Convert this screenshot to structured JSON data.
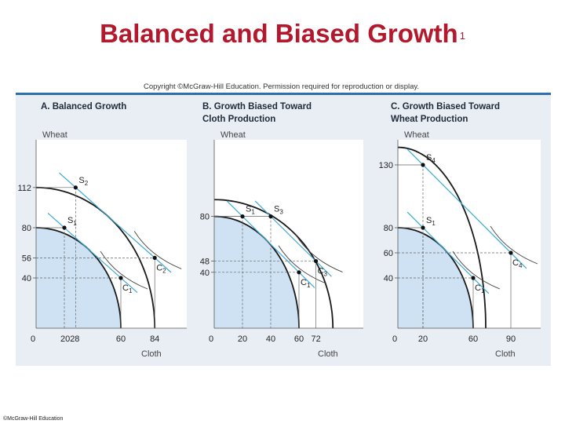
{
  "slide": {
    "title": "Balanced and Biased Growth",
    "title_suffix": "1",
    "footer": "©McGraw-Hill Education"
  },
  "copyright": "Copyright ©McGraw-Hill Education. Permission required for reproduction or display.",
  "colors": {
    "title": "#b3182c",
    "ppf_fill": "#cfe2f3",
    "ppf_curve": "#1a1a1a",
    "price_line": "#3aa8d8",
    "panel_bg": "#e9eef5",
    "panel_border": "#2f6fae"
  },
  "chart_data": [
    {
      "type": "line",
      "title_lines": [
        "A.  Balanced Growth"
      ],
      "ylabel": "Wheat",
      "xlabel": "Cloth",
      "xlim": [
        0,
        95
      ],
      "ylim": [
        0,
        130
      ],
      "x_ticks": [
        "0",
        "2028",
        "60",
        "84"
      ],
      "y_ticks": [
        "112",
        "80",
        "56",
        "40"
      ],
      "series": [
        {
          "ppf_x_intercept": 60,
          "ppf_y_intercept": 80
        },
        {
          "ppf_x_intercept": 84,
          "ppf_y_intercept": 112
        }
      ],
      "points": [
        {
          "label": "S",
          "sub": "1",
          "x": 20,
          "y": 80
        },
        {
          "label": "S",
          "sub": "2",
          "x": 28,
          "y": 112
        },
        {
          "label": "C",
          "sub": "1",
          "x": 60,
          "y": 40
        },
        {
          "label": "C",
          "sub": "2",
          "x": 84,
          "y": 56
        }
      ]
    },
    {
      "type": "line",
      "title_lines": [
        "B.  Growth Biased Toward",
        "Cloth Production"
      ],
      "ylabel": "Wheat",
      "xlabel": "Cloth",
      "xlim": [
        0,
        90
      ],
      "ylim": [
        0,
        110
      ],
      "x_ticks": [
        "0",
        "20",
        "40",
        "60",
        "72"
      ],
      "y_ticks": [
        "80",
        "48",
        "40"
      ],
      "series": [
        {
          "ppf_x_intercept": 60,
          "ppf_y_intercept": 80
        },
        {
          "ppf_x_intercept": 84,
          "ppf_y_intercept": 92
        }
      ],
      "points": [
        {
          "label": "S",
          "sub": "1",
          "x": 20,
          "y": 80
        },
        {
          "label": "S",
          "sub": "3",
          "x": 40,
          "y": 80
        },
        {
          "label": "C",
          "sub": "1",
          "x": 60,
          "y": 40
        },
        {
          "label": "C",
          "sub": "3",
          "x": 72,
          "y": 48
        }
      ]
    },
    {
      "type": "line",
      "title_lines": [
        "C.  Growth Biased Toward",
        "Wheat Production"
      ],
      "ylabel": "Wheat",
      "xlabel": "Cloth",
      "xlim": [
        0,
        110
      ],
      "ylim": [
        0,
        150
      ],
      "x_ticks": [
        "0",
        "20",
        "60",
        "90"
      ],
      "y_ticks": [
        "130",
        "80",
        "60",
        "40"
      ],
      "series": [
        {
          "ppf_x_intercept": 60,
          "ppf_y_intercept": 80
        },
        {
          "ppf_x_intercept": 70,
          "ppf_y_intercept": 144
        }
      ],
      "points": [
        {
          "label": "S",
          "sub": "1",
          "x": 20,
          "y": 80
        },
        {
          "label": "S",
          "sub": "4",
          "x": 20,
          "y": 130
        },
        {
          "label": "C",
          "sub": "1",
          "x": 60,
          "y": 40
        },
        {
          "label": "C",
          "sub": "4",
          "x": 90,
          "y": 60
        }
      ]
    }
  ]
}
